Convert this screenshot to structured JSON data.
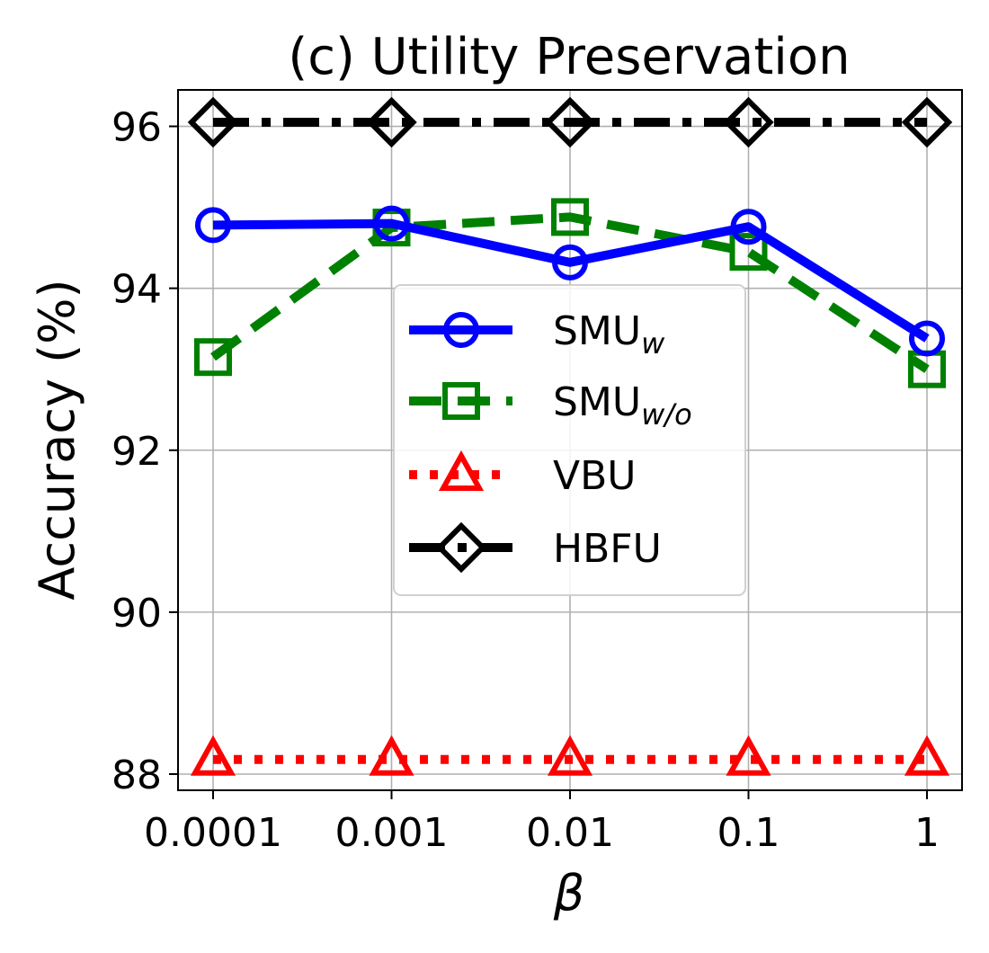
{
  "chart_data": {
    "type": "line",
    "title": "(c) Utility Preservation",
    "xlabel": "β",
    "ylabel": "Accuracy (%)",
    "x": [
      "0.0001",
      "0.001",
      "0.01",
      "0.1",
      "1"
    ],
    "ylim": [
      87.8,
      96.45
    ],
    "yticks": [
      88,
      90,
      92,
      94,
      96
    ],
    "grid": true,
    "legend_position": "center",
    "series": [
      {
        "name": "SMU",
        "name_sub": "w",
        "values": [
          94.78,
          94.8,
          94.32,
          94.76,
          93.38
        ],
        "color": "#0000ff",
        "marker": "circle",
        "linestyle": "solid"
      },
      {
        "name": "SMU",
        "name_sub": "w/o",
        "values": [
          93.15,
          94.75,
          94.88,
          94.45,
          93.0
        ],
        "color": "#008000",
        "marker": "square",
        "linestyle": "dashed"
      },
      {
        "name": "VBU",
        "values": [
          88.18,
          88.18,
          88.18,
          88.18,
          88.18
        ],
        "color": "#ff0000",
        "marker": "triangle",
        "linestyle": "dotted"
      },
      {
        "name": "HBFU",
        "values": [
          96.05,
          96.05,
          96.05,
          96.05,
          96.05
        ],
        "color": "#000000",
        "marker": "diamond",
        "linestyle": "dashdot"
      }
    ]
  }
}
